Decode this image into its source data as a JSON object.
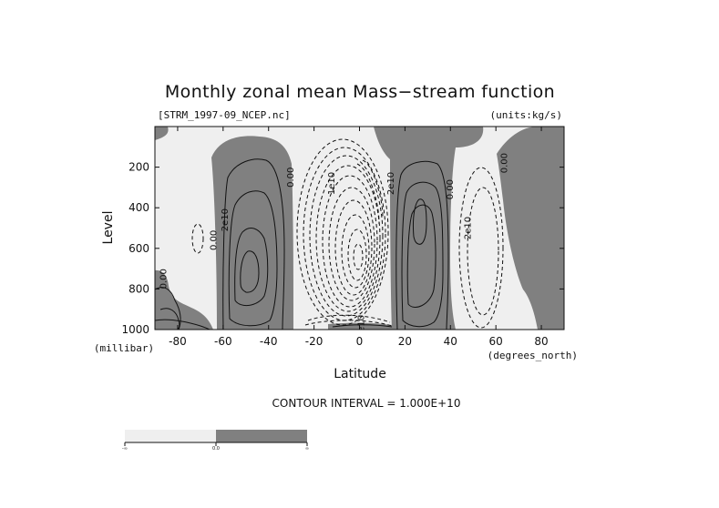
{
  "chart_data": {
    "type": "contour",
    "title": "Monthly zonal mean Mass−stream function",
    "file_label": "[STRM_1997-09_NCEP.nc]",
    "units_label": "(units:kg/s)",
    "xlabel": "Latitude",
    "x_unit_label": "(degrees_north)",
    "ylabel": "Level",
    "y_unit_label": "(millibar)",
    "xlim": [
      -90,
      90
    ],
    "ylim": [
      1000,
      0
    ],
    "x_ticks": [
      -80,
      -60,
      -40,
      -20,
      0,
      20,
      40,
      60,
      80
    ],
    "y_ticks": [
      1000,
      800,
      600,
      400,
      200
    ],
    "contour_interval_text": "CONTOUR INTERVAL = 1.000E+10",
    "contour_interval": 10000000000.0,
    "contour_labels": [
      {
        "text": "0.00",
        "lat": -85,
        "level": 750
      },
      {
        "text": "0.00",
        "lat": -63,
        "level": 560
      },
      {
        "text": "2e10",
        "lat": -58,
        "level": 460
      },
      {
        "text": "0.00",
        "lat": -29,
        "level": 250
      },
      {
        "text": "1e10",
        "lat": -11,
        "level": 280
      },
      {
        "text": "2e10",
        "lat": 15,
        "level": 280
      },
      {
        "text": "0.00",
        "lat": 41,
        "level": 310
      },
      {
        "text": "2e10",
        "lat": 49,
        "level": 500
      },
      {
        "text": "0.00",
        "lat": 65,
        "level": 180
      },
      {
        "text": "2e10",
        "lat": 2,
        "level": 985
      }
    ],
    "cells": [
      {
        "sign": "negative",
        "lat_range": [
          -70,
          -62
        ],
        "level_range": [
          150,
          1000
        ],
        "peak": -10000000000.0
      },
      {
        "sign": "positive",
        "lat_range": [
          -62,
          -32
        ],
        "level_range": [
          180,
          1000
        ],
        "peak": 30000000000.0
      },
      {
        "sign": "negative",
        "lat_range": [
          -30,
          14
        ],
        "level_range": [
          100,
          1000
        ],
        "peak": -120000000000.0
      },
      {
        "sign": "positive",
        "lat_range": [
          15,
          46
        ],
        "level_range": [
          100,
          1000
        ],
        "peak": 40000000000.0
      },
      {
        "sign": "negative",
        "lat_range": [
          46,
          72
        ],
        "level_range": [
          150,
          1000
        ],
        "peak": -20000000000.0
      }
    ],
    "colorbar": {
      "fills": [
        "#efefef",
        "#808080"
      ],
      "labels": [
        "-∞",
        "0.0",
        "∞"
      ]
    }
  }
}
